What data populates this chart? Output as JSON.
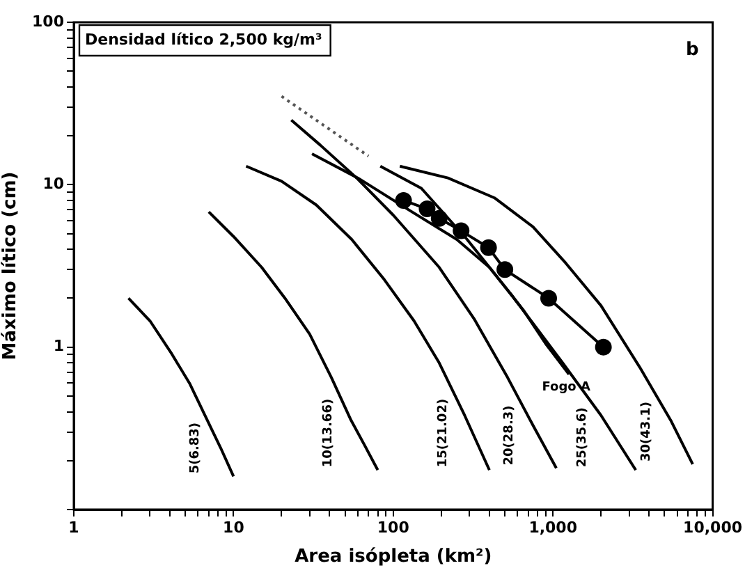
{
  "chart_data": {
    "type": "line",
    "xlabel": "Area isópleta (km²)",
    "ylabel": "Máximo lítico (cm)",
    "annotations": [
      "Densidad lítico 2,500 kg/m³",
      "b"
    ],
    "log": "xy",
    "grid": false,
    "legend": false,
    "marker": "none",
    "line_style": "solid",
    "xlim": [
      1,
      10000
    ],
    "ylim": [
      0.1,
      100
    ],
    "xticks": [
      1,
      {
        "value": 2,
        "label": null
      },
      {
        "value": 3,
        "label": null
      },
      {
        "value": 4,
        "label": null
      },
      {
        "value": 5,
        "label": null
      },
      {
        "value": 6,
        "label": null
      },
      {
        "value": 7,
        "label": null
      },
      {
        "value": 8,
        "label": null
      },
      {
        "value": 9,
        "label": null
      },
      10,
      {
        "value": 20,
        "label": null
      },
      {
        "value": 30,
        "label": null
      },
      {
        "value": 40,
        "label": null
      },
      {
        "value": 50,
        "label": null
      },
      {
        "value": 60,
        "label": null
      },
      {
        "value": 70,
        "label": null
      },
      {
        "value": 80,
        "label": null
      },
      {
        "value": 90,
        "label": null
      },
      100,
      {
        "value": 200,
        "label": null
      },
      {
        "value": 300,
        "label": null
      },
      {
        "value": 400,
        "label": null
      },
      {
        "value": 500,
        "label": null
      },
      {
        "value": 600,
        "label": null
      },
      {
        "value": 700,
        "label": null
      },
      {
        "value": 800,
        "label": null
      },
      {
        "value": 900,
        "label": null
      },
      {
        "value": 1000,
        "label": "1,000"
      },
      {
        "value": 2000,
        "label": null
      },
      {
        "value": 3000,
        "label": null
      },
      {
        "value": 4000,
        "label": null
      },
      {
        "value": 5000,
        "label": null
      },
      {
        "value": 6000,
        "label": null
      },
      {
        "value": 7000,
        "label": null
      },
      {
        "value": 8000,
        "label": null
      },
      {
        "value": 9000,
        "label": null
      },
      {
        "value": 10000,
        "label": "10,000"
      }
    ],
    "yticks": [
      {
        "value": 0.1,
        "label": null
      },
      {
        "value": 0.2,
        "label": null
      },
      {
        "value": 0.3,
        "label": null
      },
      {
        "value": 0.4,
        "label": null
      },
      {
        "value": 0.5,
        "label": null
      },
      {
        "value": 0.6,
        "label": null
      },
      {
        "value": 0.7,
        "label": null
      },
      {
        "value": 0.8,
        "label": null
      },
      {
        "value": 0.9,
        "label": null
      },
      1,
      {
        "value": 2,
        "label": null
      },
      {
        "value": 3,
        "label": null
      },
      {
        "value": 4,
        "label": null
      },
      {
        "value": 5,
        "label": null
      },
      {
        "value": 6,
        "label": null
      },
      {
        "value": 7,
        "label": null
      },
      {
        "value": 8,
        "label": null
      },
      {
        "value": 9,
        "label": null
      },
      10,
      {
        "value": 20,
        "label": null
      },
      {
        "value": 30,
        "label": null
      },
      {
        "value": 40,
        "label": null
      },
      {
        "value": 50,
        "label": null
      },
      {
        "value": 60,
        "label": null
      },
      {
        "value": 70,
        "label": null
      },
      {
        "value": 80,
        "label": null
      },
      {
        "value": 90,
        "label": null
      },
      100
    ],
    "series": [
      {
        "name": "5(6.83)",
        "color": "#000000",
        "x": [
          2.2,
          3,
          4.1,
          5.3,
          6.8,
          8.3,
          10
        ],
        "values": [
          2.0,
          1.45,
          0.91,
          0.6,
          0.36,
          0.24,
          0.16
        ]
      },
      {
        "name": "10(13.66)",
        "color": "#000000",
        "x": [
          7,
          10,
          15,
          21,
          30,
          41,
          54,
          66,
          80
        ],
        "values": [
          6.8,
          4.8,
          3.1,
          2.0,
          1.2,
          0.65,
          0.36,
          0.25,
          0.175
        ]
      },
      {
        "name": "15(21.02)",
        "color": "#000000",
        "x": [
          12,
          20,
          33,
          55,
          88,
          135,
          194,
          280,
          400
        ],
        "values": [
          13,
          10.5,
          7.5,
          4.6,
          2.6,
          1.45,
          0.8,
          0.38,
          0.175
        ]
      },
      {
        "name": "20(28.3)",
        "color": "#000000",
        "x": [
          23,
          35,
          59,
          100,
          194,
          320,
          520,
          750,
          1050
        ],
        "values": [
          25,
          17.5,
          11,
          6.5,
          3.1,
          1.5,
          0.65,
          0.33,
          0.18
        ]
      },
      {
        "name": "25(35.6)",
        "color": "#000000",
        "x": [
          83,
          150,
          290,
          550,
          1150,
          2000,
          3300
        ],
        "values": [
          13,
          9.5,
          4.6,
          2.1,
          0.8,
          0.38,
          0.175
        ]
      },
      {
        "name": "30(43.1)",
        "color": "#000000",
        "x": [
          110,
          220,
          430,
          750,
          1200,
          2000,
          3500,
          5500,
          7500
        ],
        "values": [
          13,
          11,
          8.3,
          5.5,
          3.3,
          1.8,
          0.75,
          0.35,
          0.19
        ]
      },
      {
        "color": "#555555",
        "line_style": "dotted",
        "x": [
          20,
          70
        ],
        "values": [
          35,
          15
        ]
      },
      {
        "name": "Fogo A",
        "color": "#000000",
        "x": [
          31,
          60,
          131,
          250,
          400,
          650,
          900,
          1260
        ],
        "values": [
          15.5,
          11,
          6.8,
          4.6,
          3.1,
          1.7,
          1.05,
          0.68
        ]
      },
      {
        "color": "#000000",
        "marker": "circle",
        "x": [
          116,
          163,
          194,
          266,
          395,
          500,
          940,
          2070
        ],
        "values": [
          8.0,
          7.1,
          6.2,
          5.2,
          4.1,
          3.0,
          2.0,
          1.0
        ]
      }
    ]
  }
}
